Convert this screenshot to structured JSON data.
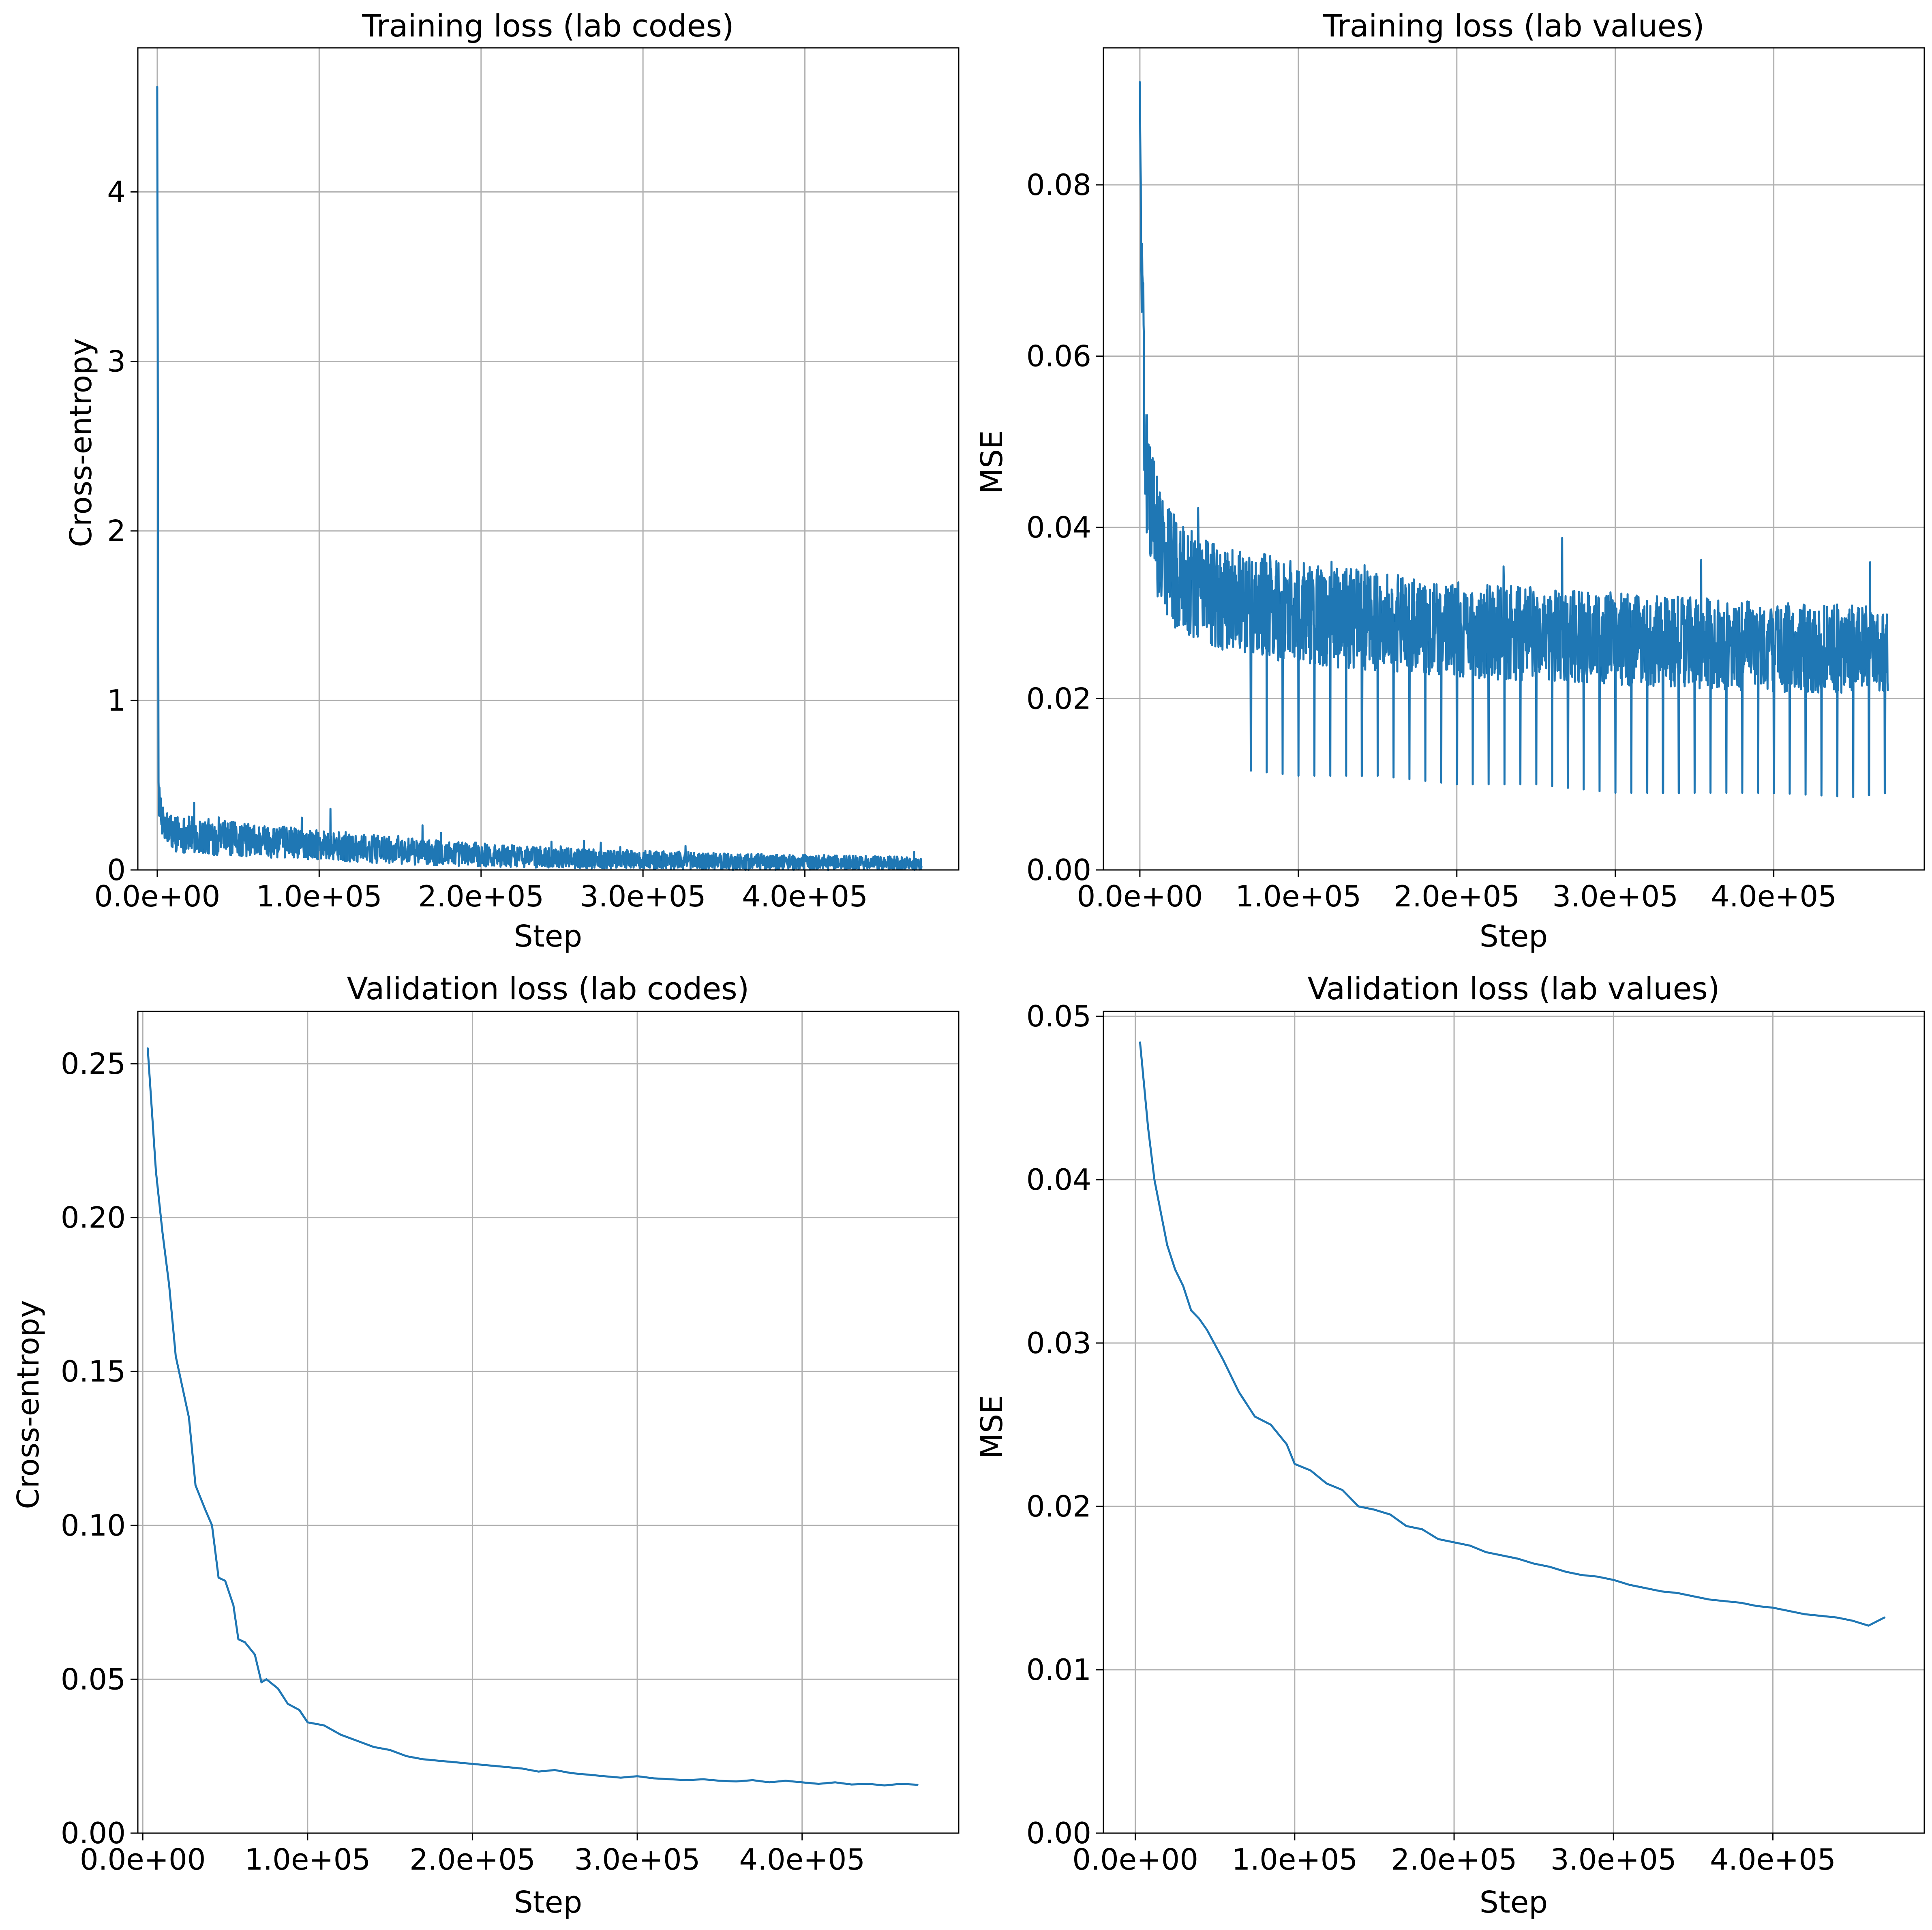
{
  "chart_data": [
    {
      "id": "train_codes",
      "type": "line",
      "title": "Training loss (lab codes)",
      "xlabel": "Step",
      "ylabel": "Cross-entropy",
      "xlim": [
        -12000,
        495000
      ],
      "ylim": [
        0,
        4.85
      ],
      "xticks": [
        0,
        100000,
        200000,
        300000,
        400000
      ],
      "xtick_labels": [
        "0.0e+00",
        "1.0e+05",
        "2.0e+05",
        "3.0e+05",
        "4.0e+05"
      ],
      "yticks": [
        0,
        1,
        2,
        3,
        4
      ],
      "ytick_labels": [
        "0",
        "1",
        "2",
        "3",
        "4"
      ],
      "grid": true,
      "color": "#1f77b4",
      "noisy": true,
      "x": [
        0,
        800,
        2000,
        4000,
        10000,
        25000,
        50000,
        100000,
        150000,
        200000,
        250000,
        300000,
        350000,
        400000,
        450000,
        472000
      ],
      "y": [
        4.62,
        0.45,
        0.33,
        0.26,
        0.22,
        0.2,
        0.18,
        0.15,
        0.11,
        0.09,
        0.07,
        0.06,
        0.05,
        0.045,
        0.04,
        0.04
      ],
      "noise_amp": [
        0.0,
        0.1,
        0.1,
        0.1,
        0.11,
        0.11,
        0.1,
        0.09,
        0.08,
        0.07,
        0.06,
        0.055,
        0.05,
        0.045,
        0.04,
        0.04
      ]
    },
    {
      "id": "train_values",
      "type": "line",
      "title": "Training loss (lab values)",
      "xlabel": "Step",
      "ylabel": "MSE",
      "xlim": [
        -23000,
        495000
      ],
      "ylim": [
        0,
        0.096
      ],
      "xticks": [
        0,
        100000,
        200000,
        300000,
        400000
      ],
      "xtick_labels": [
        "0.0e+00",
        "1.0e+05",
        "2.0e+05",
        "3.0e+05",
        "4.0e+05"
      ],
      "yticks": [
        0,
        0.02,
        0.04,
        0.06,
        0.08
      ],
      "ytick_labels": [
        "0.00",
        "0.02",
        "0.04",
        "0.06",
        "0.08"
      ],
      "grid": true,
      "color": "#1f77b4",
      "noisy": true,
      "x": [
        0,
        1000,
        3000,
        6000,
        12000,
        25000,
        50000,
        100000,
        150000,
        200000,
        250000,
        300000,
        350000,
        400000,
        450000,
        472000
      ],
      "y": [
        0.092,
        0.072,
        0.05,
        0.043,
        0.038,
        0.034,
        0.032,
        0.03,
        0.029,
        0.028,
        0.0275,
        0.027,
        0.0265,
        0.026,
        0.0258,
        0.0255
      ],
      "noise_amp": [
        0.0,
        0.01,
        0.009,
        0.0075,
        0.007,
        0.0065,
        0.0062,
        0.006,
        0.0058,
        0.0056,
        0.0055,
        0.0054,
        0.0053,
        0.0052,
        0.0052,
        0.0052
      ],
      "dips_every": 10000,
      "dip_values": [
        0.014,
        0.015,
        0.015,
        0.013,
        0.013,
        0.012,
        0.012,
        0.011,
        0.011,
        0.01,
        0.01,
        0.009,
        0.009,
        0.009,
        0.0085,
        0.009
      ]
    },
    {
      "id": "val_codes",
      "type": "line",
      "title": "Validation loss (lab codes)",
      "xlabel": "Step",
      "ylabel": "Cross-entropy",
      "xlim": [
        -3000,
        495000
      ],
      "ylim": [
        0,
        0.267
      ],
      "xticks": [
        0,
        100000,
        200000,
        300000,
        400000
      ],
      "xtick_labels": [
        "0.0e+00",
        "1.0e+05",
        "2.0e+05",
        "3.0e+05",
        "4.0e+05"
      ],
      "yticks": [
        0,
        0.05,
        0.1,
        0.15,
        0.2,
        0.25
      ],
      "ytick_labels": [
        "0.00",
        "0.05",
        "0.10",
        "0.15",
        "0.20",
        "0.25"
      ],
      "grid": true,
      "color": "#1f77b4",
      "noisy": false,
      "x": [
        3000,
        8000,
        12000,
        16000,
        20000,
        28000,
        32000,
        38000,
        42000,
        46000,
        50000,
        55000,
        58000,
        62000,
        68000,
        72000,
        75000,
        82000,
        88000,
        95000,
        100000,
        110000,
        120000,
        130000,
        140000,
        150000,
        160000,
        170000,
        180000,
        190000,
        200000,
        210000,
        220000,
        230000,
        240000,
        250000,
        260000,
        270000,
        280000,
        290000,
        300000,
        310000,
        320000,
        330000,
        340000,
        350000,
        360000,
        370000,
        380000,
        390000,
        400000,
        410000,
        420000,
        430000,
        440000,
        450000,
        460000,
        470000
      ],
      "y": [
        0.255,
        0.215,
        0.195,
        0.178,
        0.155,
        0.135,
        0.113,
        0.105,
        0.1,
        0.083,
        0.082,
        0.074,
        0.063,
        0.062,
        0.058,
        0.049,
        0.05,
        0.047,
        0.042,
        0.04,
        0.036,
        0.035,
        0.032,
        0.03,
        0.028,
        0.027,
        0.025,
        0.024,
        0.0235,
        0.023,
        0.0225,
        0.022,
        0.0215,
        0.021,
        0.02,
        0.0205,
        0.0195,
        0.019,
        0.0185,
        0.018,
        0.0185,
        0.0178,
        0.0175,
        0.0172,
        0.0175,
        0.017,
        0.0168,
        0.0172,
        0.0165,
        0.017,
        0.0165,
        0.016,
        0.0165,
        0.0158,
        0.016,
        0.0155,
        0.016,
        0.0157
      ]
    },
    {
      "id": "val_values",
      "type": "line",
      "title": "Validation loss (lab values)",
      "xlabel": "Step",
      "ylabel": "MSE",
      "xlim": [
        -20000,
        495000
      ],
      "ylim": [
        0,
        0.0503
      ],
      "xticks": [
        0,
        100000,
        200000,
        300000,
        400000
      ],
      "xtick_labels": [
        "0.0e+00",
        "1.0e+05",
        "2.0e+05",
        "3.0e+05",
        "4.0e+05"
      ],
      "yticks": [
        0,
        0.01,
        0.02,
        0.03,
        0.04,
        0.05
      ],
      "ytick_labels": [
        "0.00",
        "0.01",
        "0.02",
        "0.03",
        "0.04",
        "0.05"
      ],
      "grid": true,
      "color": "#1f77b4",
      "noisy": false,
      "x": [
        3000,
        8000,
        12000,
        20000,
        25000,
        30000,
        35000,
        40000,
        45000,
        55000,
        65000,
        75000,
        85000,
        95000,
        100000,
        110000,
        120000,
        130000,
        140000,
        150000,
        160000,
        170000,
        180000,
        190000,
        200000,
        210000,
        220000,
        230000,
        240000,
        250000,
        260000,
        270000,
        280000,
        290000,
        300000,
        310000,
        320000,
        330000,
        340000,
        350000,
        360000,
        370000,
        380000,
        390000,
        400000,
        410000,
        420000,
        430000,
        440000,
        450000,
        460000,
        470000
      ],
      "y": [
        0.0484,
        0.0432,
        0.04,
        0.036,
        0.0345,
        0.0335,
        0.032,
        0.0315,
        0.0308,
        0.029,
        0.027,
        0.0255,
        0.025,
        0.0238,
        0.0226,
        0.0222,
        0.0214,
        0.021,
        0.02,
        0.0198,
        0.0195,
        0.0188,
        0.0186,
        0.018,
        0.0178,
        0.0176,
        0.0172,
        0.017,
        0.0168,
        0.0165,
        0.0163,
        0.016,
        0.0158,
        0.0157,
        0.0155,
        0.0152,
        0.015,
        0.0148,
        0.0147,
        0.0145,
        0.0143,
        0.0142,
        0.0141,
        0.0139,
        0.0138,
        0.0136,
        0.0134,
        0.0133,
        0.0132,
        0.013,
        0.0127,
        0.0132
      ]
    }
  ]
}
